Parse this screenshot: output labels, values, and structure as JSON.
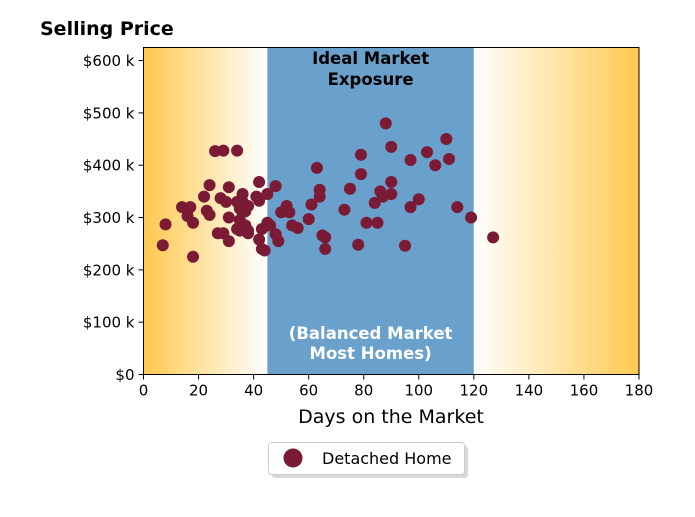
{
  "chart_data": {
    "type": "scatter",
    "title": "Selling Price",
    "xlabel": "Days on the Market",
    "ylabel": "",
    "xlim": [
      0,
      180
    ],
    "ylim": [
      0,
      625000
    ],
    "x_ticks": [
      {
        "value": 0,
        "label": "0"
      },
      {
        "value": 20,
        "label": "20"
      },
      {
        "value": 40,
        "label": "40"
      },
      {
        "value": 60,
        "label": "60"
      },
      {
        "value": 80,
        "label": "80"
      },
      {
        "value": 100,
        "label": "100"
      },
      {
        "value": 120,
        "label": "120"
      },
      {
        "value": 140,
        "label": "140"
      },
      {
        "value": 160,
        "label": "160"
      },
      {
        "value": 180,
        "label": "180"
      }
    ],
    "y_ticks": [
      {
        "value": 0,
        "label": "$0"
      },
      {
        "value": 100000,
        "label": "$100 k"
      },
      {
        "value": 200000,
        "label": "$200 k"
      },
      {
        "value": 300000,
        "label": "$300 k"
      },
      {
        "value": 400000,
        "label": "$400 k"
      },
      {
        "value": 500000,
        "label": "$500 k"
      },
      {
        "value": 600000,
        "label": "$600 k"
      }
    ],
    "grid": false,
    "legend_position": "bottom-center",
    "region": {
      "x_start": 45,
      "x_end": 120,
      "color": "#6aa0cc"
    },
    "background_gradient": {
      "edge_color": "#ffc94f",
      "center_color": "#ffffff"
    },
    "annotations": [
      {
        "text_lines": [
          "Ideal Market",
          "Exposure"
        ],
        "color": "#000000"
      },
      {
        "text_lines": [
          "(Balanced Market",
          "Most Homes)"
        ],
        "color": "#ffffff"
      }
    ],
    "series": [
      {
        "name": "Detached Home",
        "color": "#7a1a35",
        "points": [
          [
            7,
            247000
          ],
          [
            8,
            287000
          ],
          [
            14,
            320000
          ],
          [
            16,
            303000
          ],
          [
            17,
            320000
          ],
          [
            18,
            290000
          ],
          [
            18,
            225000
          ],
          [
            22,
            340000
          ],
          [
            23,
            313000
          ],
          [
            24,
            305000
          ],
          [
            24,
            362000
          ],
          [
            26,
            427000
          ],
          [
            27,
            270000
          ],
          [
            28,
            337000
          ],
          [
            29,
            428000
          ],
          [
            29,
            270000
          ],
          [
            30,
            330000
          ],
          [
            31,
            300000
          ],
          [
            31,
            358000
          ],
          [
            31,
            255000
          ],
          [
            34,
            428000
          ],
          [
            34,
            278000
          ],
          [
            34,
            330000
          ],
          [
            35,
            317000
          ],
          [
            35,
            295000
          ],
          [
            35,
            275000
          ],
          [
            36,
            345000
          ],
          [
            36,
            330000
          ],
          [
            36,
            310000
          ],
          [
            37,
            312000
          ],
          [
            37,
            285000
          ],
          [
            37,
            277000
          ],
          [
            38,
            270000
          ],
          [
            38,
            322000
          ],
          [
            38,
            275000
          ],
          [
            41,
            340000
          ],
          [
            42,
            332000
          ],
          [
            42,
            368000
          ],
          [
            42,
            258000
          ],
          [
            43,
            240000
          ],
          [
            43,
            278000
          ],
          [
            44,
            237000
          ],
          [
            45,
            345000
          ],
          [
            45,
            290000
          ],
          [
            46,
            285000
          ],
          [
            48,
            360000
          ],
          [
            48,
            268000
          ],
          [
            49,
            255000
          ],
          [
            50,
            310000
          ],
          [
            51,
            312000
          ],
          [
            52,
            322000
          ],
          [
            53,
            310000
          ],
          [
            54,
            285000
          ],
          [
            56,
            280000
          ],
          [
            60,
            297000
          ],
          [
            61,
            325000
          ],
          [
            63,
            395000
          ],
          [
            64,
            340000
          ],
          [
            64,
            353000
          ],
          [
            65,
            266000
          ],
          [
            66,
            240000
          ],
          [
            66,
            262000
          ],
          [
            73,
            315000
          ],
          [
            75,
            355000
          ],
          [
            78,
            248000
          ],
          [
            79,
            383000
          ],
          [
            79,
            420000
          ],
          [
            81,
            290000
          ],
          [
            84,
            328000
          ],
          [
            85,
            290000
          ],
          [
            86,
            350000
          ],
          [
            87,
            340000
          ],
          [
            88,
            480000
          ],
          [
            90,
            368000
          ],
          [
            90,
            345000
          ],
          [
            90,
            435000
          ],
          [
            95,
            246000
          ],
          [
            97,
            410000
          ],
          [
            97,
            320000
          ],
          [
            100,
            335000
          ],
          [
            103,
            425000
          ],
          [
            106,
            400000
          ],
          [
            110,
            450000
          ],
          [
            111,
            412000
          ],
          [
            114,
            320000
          ],
          [
            119,
            300000
          ],
          [
            127,
            262000
          ]
        ]
      }
    ]
  }
}
